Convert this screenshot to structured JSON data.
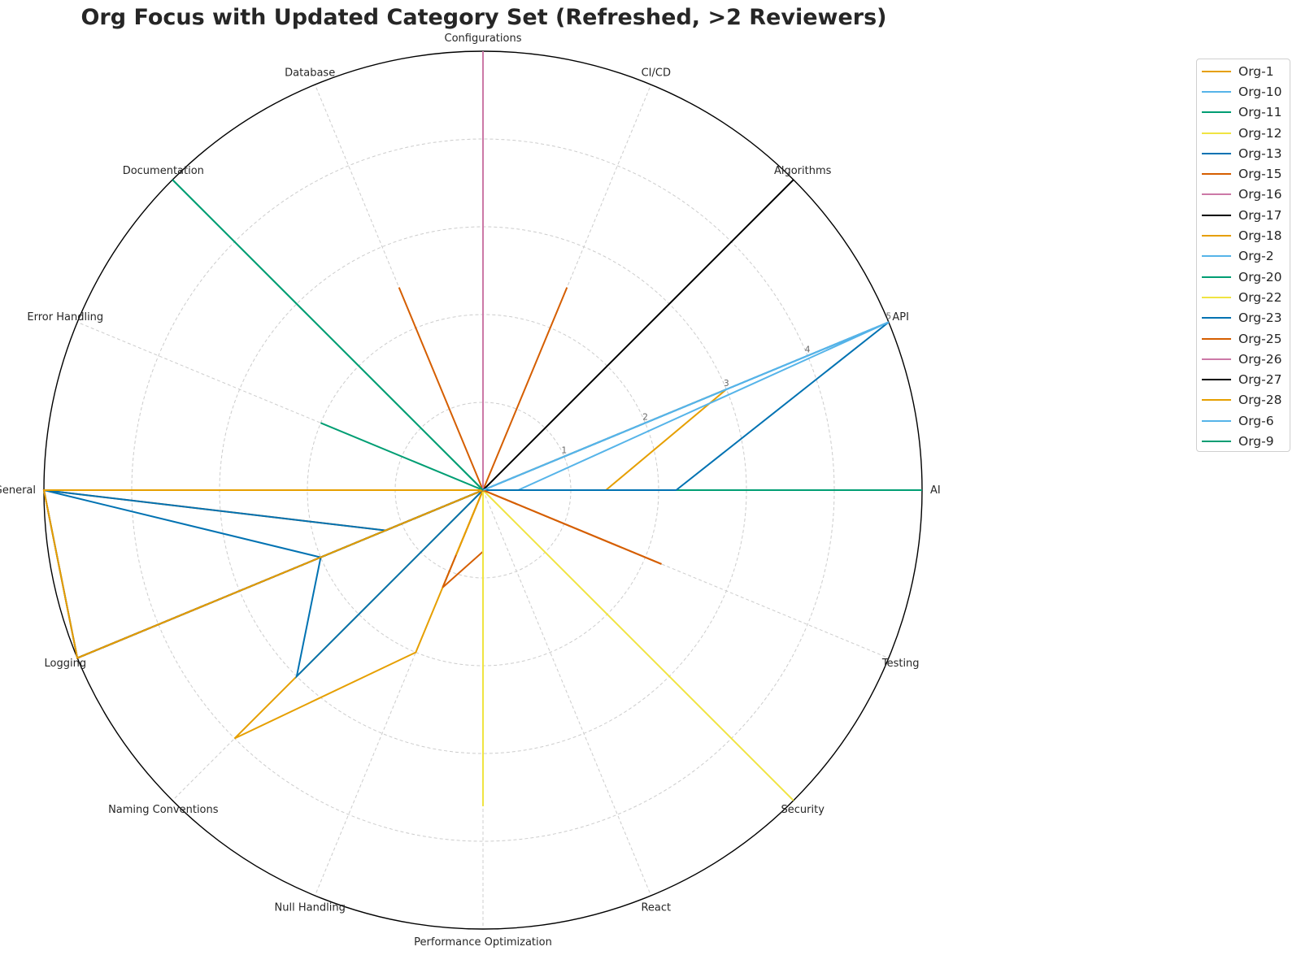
{
  "chart_data": {
    "type": "radar",
    "title": "Org Focus with Updated Category Set (Refreshed, >2 Reviewers)",
    "categories": [
      "AI",
      "API",
      "Algorithms",
      "CI/CD",
      "Configurations",
      "Database",
      "Documentation",
      "Error Handling",
      "General",
      "Logging",
      "Naming Conventions",
      "Null Handling",
      "Performance Optimization",
      "React",
      "Security",
      "Testing"
    ],
    "radial_ticks": [
      "1",
      "2",
      "3",
      "4",
      "5"
    ],
    "rlim": [
      0,
      5
    ],
    "grid": true,
    "legend_position": "outside-right",
    "series": [
      {
        "name": "Org-1",
        "color": "#E69F00",
        "values": [
          1.4,
          3,
          0,
          0,
          0,
          0,
          0,
          0,
          5,
          0,
          4,
          2,
          0,
          0,
          0,
          0
        ]
      },
      {
        "name": "Org-10",
        "color": "#56B4E9",
        "values": [
          0.4,
          5,
          0,
          0,
          0,
          0,
          0,
          0,
          0.5,
          0,
          0,
          0,
          0,
          0,
          0,
          0
        ]
      },
      {
        "name": "Org-11",
        "color": "#009E73",
        "values": [
          5,
          0,
          0,
          0,
          0,
          0,
          5,
          0,
          0,
          0,
          0,
          0,
          0,
          0,
          0,
          0
        ]
      },
      {
        "name": "Org-12",
        "color": "#F0E442",
        "values": [
          0,
          0,
          0,
          0,
          0,
          0,
          0,
          0,
          0,
          0,
          0,
          0,
          3.6,
          0,
          5,
          0
        ]
      },
      {
        "name": "Org-13",
        "color": "#0072B2",
        "values": [
          2.2,
          5,
          0,
          0,
          0,
          0,
          0,
          0,
          5,
          2,
          3,
          0,
          0,
          0,
          0,
          0
        ]
      },
      {
        "name": "Org-15",
        "color": "#D55E00",
        "values": [
          0,
          0,
          0,
          0,
          0,
          0,
          0,
          0,
          5,
          1.2,
          0,
          1.2,
          0.7,
          0,
          0,
          2.2
        ]
      },
      {
        "name": "Org-16",
        "color": "#CC79A7",
        "values": [
          0,
          0,
          0,
          0,
          5,
          0,
          0,
          0,
          0,
          0,
          0,
          0,
          0,
          0,
          0,
          0
        ]
      },
      {
        "name": "Org-17",
        "color": "#000000",
        "values": [
          0,
          0,
          0,
          0,
          1,
          0,
          0,
          0,
          5,
          5,
          0,
          0,
          0,
          0,
          0,
          0
        ]
      },
      {
        "name": "Org-18",
        "color": "#E69F00",
        "values": [
          0,
          0,
          0,
          0,
          0,
          0,
          0,
          0,
          5,
          0,
          0,
          0.8,
          0,
          0,
          0,
          0
        ]
      },
      {
        "name": "Org-2",
        "color": "#56B4E9",
        "values": [
          0,
          5,
          0,
          0,
          0,
          0,
          0,
          0,
          0,
          0,
          0,
          0,
          0,
          0,
          0,
          0
        ]
      },
      {
        "name": "Org-20",
        "color": "#009E73",
        "values": [
          0,
          0,
          0,
          0,
          0,
          0,
          0,
          2,
          0,
          2,
          0,
          0,
          0,
          0,
          0,
          0
        ]
      },
      {
        "name": "Org-22",
        "color": "#F0E442",
        "values": [
          0,
          0,
          0,
          0,
          0,
          0,
          0,
          0,
          0,
          0,
          0,
          0,
          3.6,
          0,
          0,
          0
        ]
      },
      {
        "name": "Org-23",
        "color": "#0072B2",
        "values": [
          0,
          0,
          0,
          0,
          0,
          0,
          0,
          0,
          5,
          1.2,
          0,
          0,
          0,
          0,
          0,
          0
        ]
      },
      {
        "name": "Org-25",
        "color": "#D55E00",
        "values": [
          0,
          0,
          0,
          2.5,
          0,
          2.5,
          0,
          0,
          5,
          0,
          0,
          0,
          0,
          0,
          0,
          2.2
        ]
      },
      {
        "name": "Org-26",
        "color": "#CC79A7",
        "values": [
          0,
          0,
          0,
          0,
          5,
          0,
          0,
          0,
          0,
          0,
          0,
          0,
          0,
          0,
          0,
          0
        ]
      },
      {
        "name": "Org-27",
        "color": "#000000",
        "values": [
          0,
          0,
          5,
          0,
          0,
          0,
          0,
          0,
          0,
          5,
          0,
          0,
          0,
          0,
          0,
          0
        ]
      },
      {
        "name": "Org-28",
        "color": "#E69F00",
        "values": [
          0,
          0,
          0,
          0,
          0,
          0,
          0,
          0,
          5,
          5,
          0,
          0,
          0,
          0,
          0,
          0
        ]
      },
      {
        "name": "Org-6",
        "color": "#56B4E9",
        "values": [
          0,
          5,
          0,
          0,
          0,
          0,
          0,
          0,
          0,
          0,
          0,
          0,
          0,
          0,
          0,
          0
        ]
      },
      {
        "name": "Org-9",
        "color": "#009E73",
        "values": [
          0,
          0,
          0,
          0,
          0,
          0,
          5,
          0,
          0,
          0,
          0,
          0,
          0,
          0,
          0,
          0
        ]
      }
    ]
  }
}
